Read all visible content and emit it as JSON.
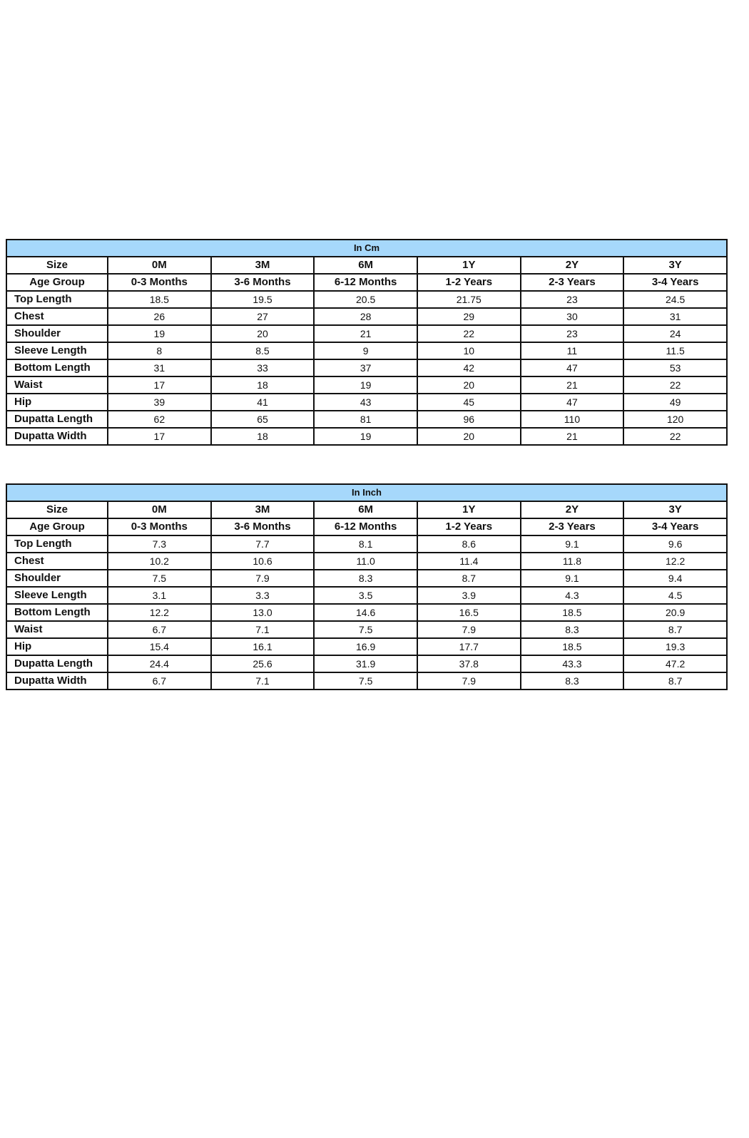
{
  "tables": [
    {
      "title": "In Cm",
      "header_color": "#a6d8fb",
      "size_row": {
        "label": "Size",
        "values": [
          "0M",
          "3M",
          "6M",
          "1Y",
          "2Y",
          "3Y"
        ]
      },
      "age_row": {
        "label": "Age Group",
        "values": [
          "0-3 Months",
          "3-6 Months",
          "6-12 Months",
          "1-2 Years",
          "2-3 Years",
          "3-4 Years"
        ]
      },
      "rows": [
        {
          "label": "Top Length",
          "values": [
            "18.5",
            "19.5",
            "20.5",
            "21.75",
            "23",
            "24.5"
          ]
        },
        {
          "label": "Chest",
          "values": [
            "26",
            "27",
            "28",
            "29",
            "30",
            "31"
          ]
        },
        {
          "label": "Shoulder",
          "values": [
            "19",
            "20",
            "21",
            "22",
            "23",
            "24"
          ]
        },
        {
          "label": "Sleeve Length",
          "values": [
            "8",
            "8.5",
            "9",
            "10",
            "11",
            "11.5"
          ]
        },
        {
          "label": "Bottom Length",
          "values": [
            "31",
            "33",
            "37",
            "42",
            "47",
            "53"
          ]
        },
        {
          "label": "Waist",
          "values": [
            "17",
            "18",
            "19",
            "20",
            "21",
            "22"
          ]
        },
        {
          "label": "Hip",
          "values": [
            "39",
            "41",
            "43",
            "45",
            "47",
            "49"
          ]
        },
        {
          "label": "Dupatta Length",
          "values": [
            "62",
            "65",
            "81",
            "96",
            "110",
            "120"
          ]
        },
        {
          "label": "Dupatta Width",
          "values": [
            "17",
            "18",
            "19",
            "20",
            "21",
            "22"
          ]
        }
      ]
    },
    {
      "title": "In Inch",
      "header_color": "#a6d8fb",
      "size_row": {
        "label": "Size",
        "values": [
          "0M",
          "3M",
          "6M",
          "1Y",
          "2Y",
          "3Y"
        ]
      },
      "age_row": {
        "label": "Age Group",
        "values": [
          "0-3 Months",
          "3-6 Months",
          "6-12 Months",
          "1-2 Years",
          "2-3 Years",
          "3-4 Years"
        ]
      },
      "rows": [
        {
          "label": "Top Length",
          "values": [
            "7.3",
            "7.7",
            "8.1",
            "8.6",
            "9.1",
            "9.6"
          ]
        },
        {
          "label": "Chest",
          "values": [
            "10.2",
            "10.6",
            "11.0",
            "11.4",
            "11.8",
            "12.2"
          ]
        },
        {
          "label": "Shoulder",
          "values": [
            "7.5",
            "7.9",
            "8.3",
            "8.7",
            "9.1",
            "9.4"
          ]
        },
        {
          "label": "Sleeve Length",
          "values": [
            "3.1",
            "3.3",
            "3.5",
            "3.9",
            "4.3",
            "4.5"
          ]
        },
        {
          "label": "Bottom Length",
          "values": [
            "12.2",
            "13.0",
            "14.6",
            "16.5",
            "18.5",
            "20.9"
          ]
        },
        {
          "label": "Waist",
          "values": [
            "6.7",
            "7.1",
            "7.5",
            "7.9",
            "8.3",
            "8.7"
          ]
        },
        {
          "label": "Hip",
          "values": [
            "15.4",
            "16.1",
            "16.9",
            "17.7",
            "18.5",
            "19.3"
          ]
        },
        {
          "label": "Dupatta Length",
          "values": [
            "24.4",
            "25.6",
            "31.9",
            "37.8",
            "43.3",
            "47.2"
          ]
        },
        {
          "label": "Dupatta Width",
          "values": [
            "6.7",
            "7.1",
            "7.5",
            "7.9",
            "8.3",
            "8.7"
          ]
        }
      ]
    }
  ]
}
